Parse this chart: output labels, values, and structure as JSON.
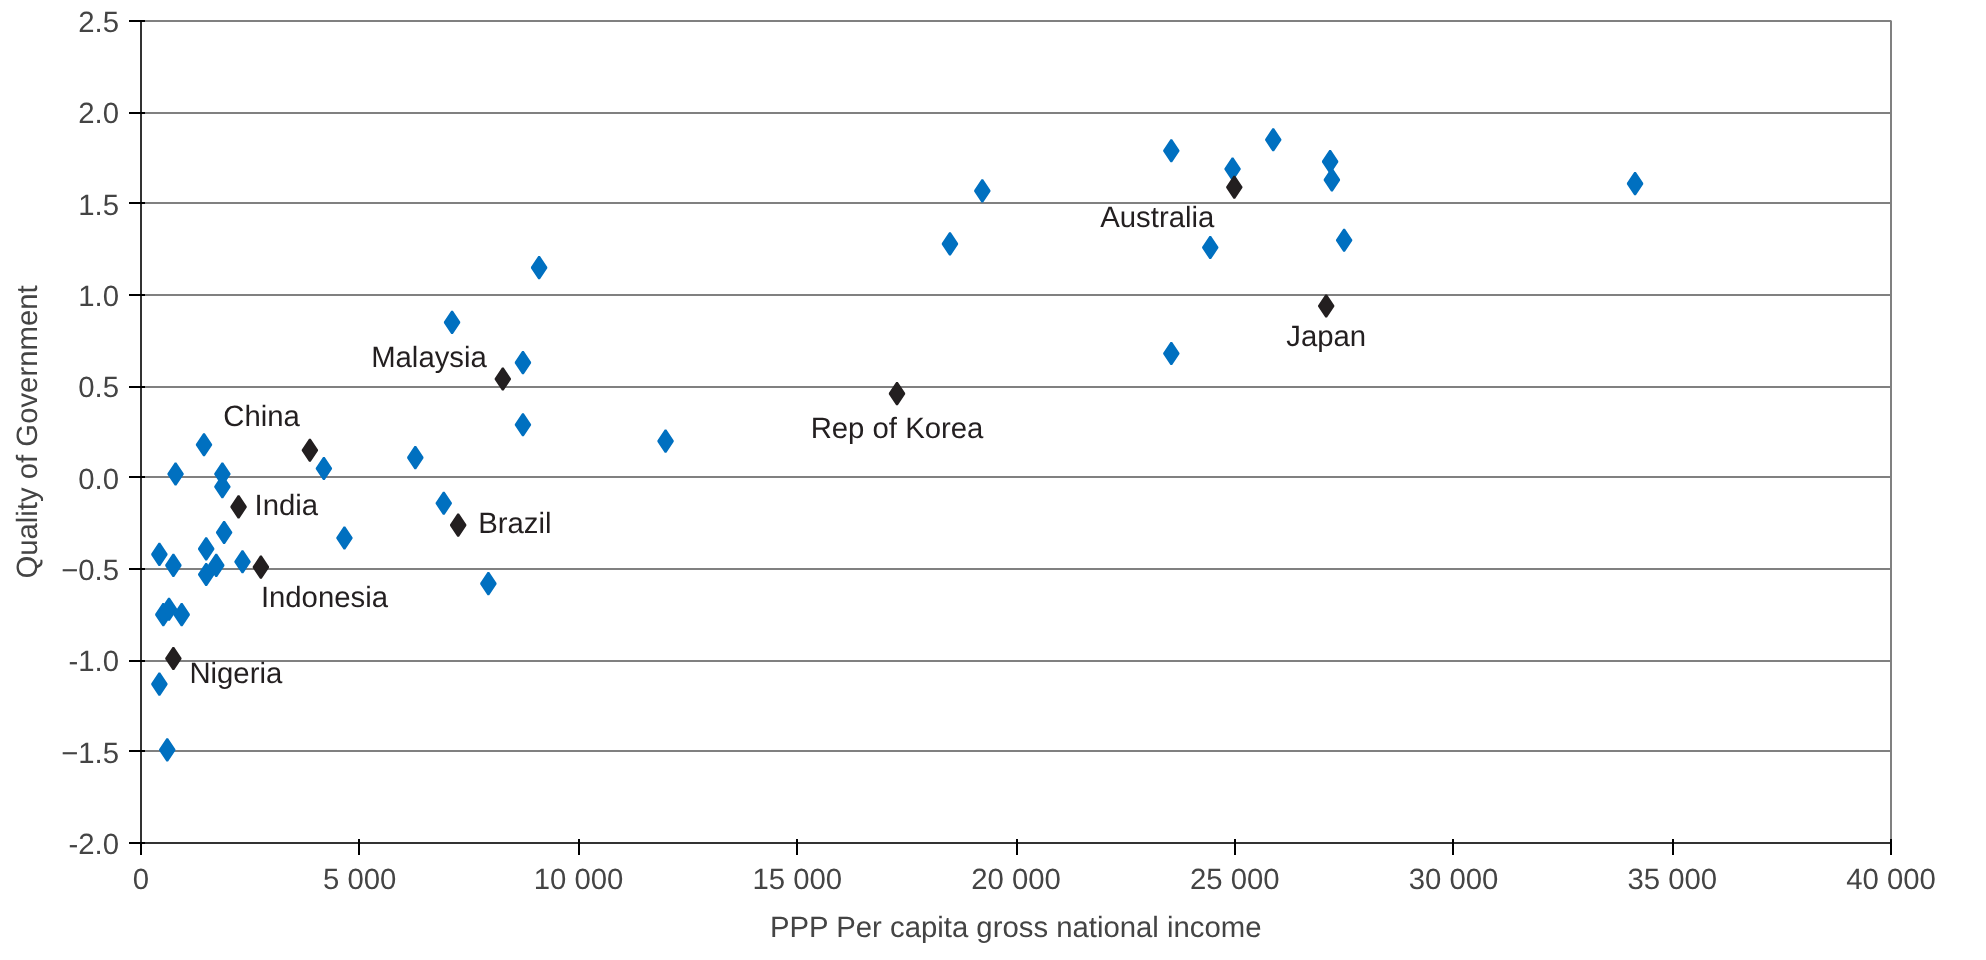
{
  "chart_data": {
    "type": "scatter",
    "xlabel": "PPP Per capita gross national income",
    "ylabel": "Quality of Government",
    "marker": "diamond",
    "grid": "y",
    "xlim": [
      0,
      40000
    ],
    "ylim": [
      -2.0,
      2.5
    ],
    "xticks": [
      0,
      {
        "value": 5000,
        "label": "5 000"
      },
      {
        "value": 10000,
        "label": "10 000"
      },
      {
        "value": 15000,
        "label": "15 000"
      },
      {
        "value": 20000,
        "label": "20 000"
      },
      {
        "value": 25000,
        "label": "25 000"
      },
      {
        "value": 30000,
        "label": "30 000"
      },
      {
        "value": 35000,
        "label": "35 000"
      },
      {
        "value": 40000,
        "label": "40 000"
      }
    ],
    "yticks": [
      {
        "value": -2.0,
        "label": "-2.0"
      },
      -1.5,
      {
        "value": -1.0,
        "label": "-1.0"
      },
      -0.5,
      {
        "value": 0,
        "label": "0.0"
      },
      0.5,
      {
        "value": 1.0,
        "label": "1.0"
      },
      1.5,
      {
        "value": 2.0,
        "label": "2.0"
      },
      2.5
    ],
    "series": [
      {
        "color": "#0070c0",
        "x": [
          420,
          510,
          640,
          740,
          790,
          930,
          420,
          600,
          1440,
          1490,
          1490,
          1860,
          1860,
          1900,
          1720,
          2320,
          4180,
          4650,
          6270,
          6920,
          7110,
          7940,
          8730,
          8730,
          9100,
          11990,
          18490,
          19230,
          23550,
          23550,
          24440,
          24950,
          25880,
          27180,
          27220,
          27500,
          34150
        ],
        "values": [
          -0.42,
          -0.75,
          -0.72,
          -0.48,
          0.02,
          -0.75,
          -1.13,
          -1.49,
          0.18,
          -0.39,
          -0.53,
          0.02,
          -0.05,
          -0.3,
          -0.48,
          -0.46,
          0.05,
          -0.33,
          0.11,
          -0.14,
          0.85,
          -0.58,
          0.63,
          0.29,
          1.15,
          0.2,
          1.28,
          1.57,
          0.68,
          1.79,
          1.26,
          1.69,
          1.85,
          1.73,
          1.63,
          1.3,
          1.61
        ]
      },
      {
        "color": "#231f20",
        "x": [
          3860,
          2230,
          2740,
          740,
          8270,
          7250,
          17280,
          24990,
          27090
        ],
        "values": [
          0.15,
          -0.16,
          -0.49,
          -0.99,
          0.54,
          -0.26,
          0.46,
          1.59,
          0.94
        ]
      }
    ],
    "annotations": [
      {
        "text": "China",
        "x": 3860,
        "y": 0.15
      },
      {
        "text": "India",
        "x": 2230,
        "y": -0.16
      },
      {
        "text": "Indonesia",
        "x": 2740,
        "y": -0.49
      },
      {
        "text": "Nigeria",
        "x": 740,
        "y": -0.99
      },
      {
        "text": "Malaysia",
        "x": 8270,
        "y": 0.54
      },
      {
        "text": "Brazil",
        "x": 7250,
        "y": -0.26
      },
      {
        "text": "Rep of Korea",
        "x": 17280,
        "y": 0.46
      },
      {
        "text": "Australia",
        "x": 24990,
        "y": 1.59
      },
      {
        "text": "Japan",
        "x": 27090,
        "y": 0.94
      }
    ]
  }
}
